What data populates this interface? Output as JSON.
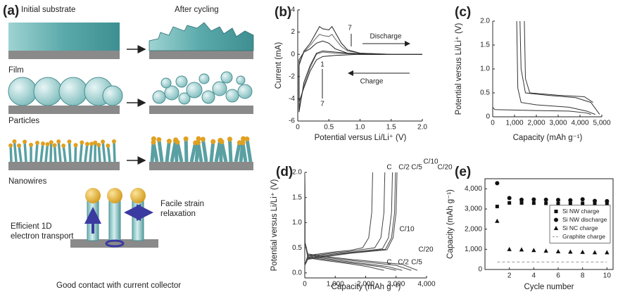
{
  "diagram": {
    "label": "(a)",
    "initial": "Initial substrate",
    "after": "After cycling",
    "film": "Film",
    "particles": "Particles",
    "nanowires": "Nanowires",
    "transport": [
      "Efficient 1D",
      "electron transport"
    ],
    "strain": [
      "Facile strain",
      "relaxation"
    ],
    "contact": "Good contact with current collector"
  },
  "chart_data": [
    {
      "type": "line",
      "label": "(b)",
      "x_label": "Potential versus Li/Li⁺ (V)",
      "y_label": "Current (mA)",
      "xlim": [
        0,
        2
      ],
      "xticks": [
        0,
        0.5,
        {
          "value": 1,
          "label": "1.0"
        },
        1.5,
        {
          "value": 2,
          "label": "2.0"
        }
      ],
      "ylim": [
        -6,
        4
      ],
      "yticks": [
        -6,
        -4,
        -2,
        0,
        2,
        4
      ],
      "annotations": [
        "7",
        "Discharge",
        "Charge",
        "1",
        "7"
      ],
      "series": [
        {
          "color": "#222",
          "x": [
            2.0,
            1.5,
            1.0,
            0.6,
            0.4,
            0.3,
            0.2,
            0.1,
            0.02,
            0.02,
            0.1,
            0.2,
            0.3,
            0.4,
            0.5,
            0.6,
            0.8,
            1.0,
            1.5,
            2.0
          ],
          "values": [
            0,
            0,
            0,
            -0.1,
            -0.2,
            -0.5,
            -1.5,
            -3,
            -4.3,
            -0.5,
            0.2,
            0.5,
            1.0,
            1.2,
            1.0,
            0.5,
            0.1,
            0.05,
            0,
            0
          ]
        },
        {
          "color": "#666",
          "x": [
            2.0,
            1.5,
            1.0,
            0.6,
            0.4,
            0.3,
            0.2,
            0.1,
            0.02,
            0.02,
            0.1,
            0.2,
            0.3,
            0.35,
            0.4,
            0.5,
            0.55,
            0.6,
            0.7,
            0.8,
            1.0,
            1.5,
            2.0
          ],
          "values": [
            0,
            0,
            0,
            0.1,
            0.2,
            0,
            -1.2,
            -2.8,
            -4.8,
            -0.8,
            0.2,
            0.8,
            1.5,
            1.8,
            1.7,
            1.6,
            1.8,
            1.4,
            0.7,
            0.3,
            0.1,
            0,
            0
          ]
        },
        {
          "color": "#222",
          "x": [
            2.0,
            1.5,
            1.0,
            0.6,
            0.4,
            0.3,
            0.2,
            0.1,
            0.02,
            0.02,
            0.1,
            0.2,
            0.3,
            0.35,
            0.4,
            0.5,
            0.55,
            0.6,
            0.7,
            0.8,
            1.0,
            1.5,
            2.0
          ],
          "values": [
            0,
            0,
            0,
            0.2,
            0.3,
            0.1,
            -1.0,
            -2.5,
            -5.2,
            -1.0,
            0.3,
            1.0,
            2.0,
            2.5,
            2.3,
            2.2,
            2.5,
            2.0,
            1.0,
            0.4,
            0.1,
            0,
            0
          ]
        }
      ]
    },
    {
      "type": "line",
      "label": "(c)",
      "x_label": "Capacity (mAh g⁻¹)",
      "y_label": "Potential versus Li/Li⁺ (V)",
      "xlim": [
        0,
        5000
      ],
      "xticks": [
        0,
        {
          "value": 1000,
          "label": "1,000"
        },
        {
          "value": 2000,
          "label": "2,000"
        },
        {
          "value": 3000,
          "label": "3,000"
        },
        {
          "value": 4000,
          "label": "4,000"
        },
        {
          "value": 5000,
          "label": "5,000"
        }
      ],
      "ylim": [
        0,
        2
      ],
      "yticks": [
        0,
        0.5,
        {
          "value": 1,
          "label": "1.0"
        },
        1.5,
        {
          "value": 2,
          "label": "2.0"
        }
      ],
      "series": [
        {
          "color": "#333",
          "x": [
            0,
            0,
            100,
            2000,
            3500,
            4300,
            4500
          ],
          "values": [
            2.0,
            0.2,
            0.15,
            0.13,
            0.12,
            0.08,
            0.05
          ]
        },
        {
          "color": "#333",
          "x": [
            1100,
            1150,
            1300,
            2000,
            3500,
            4300,
            4700
          ],
          "values": [
            2.0,
            0.6,
            0.3,
            0.25,
            0.2,
            0.12,
            0.05
          ]
        },
        {
          "color": "#333",
          "x": [
            1250,
            1300,
            1500,
            2500,
            3800,
            4500,
            4900
          ],
          "values": [
            2.0,
            1.0,
            0.5,
            0.45,
            0.4,
            0.3,
            0.05
          ]
        },
        {
          "color": "#333",
          "x": [
            1450,
            1500,
            1700,
            3000,
            4200,
            4600
          ],
          "values": [
            2.0,
            0.8,
            0.5,
            0.45,
            0.42,
            0.3
          ]
        }
      ]
    },
    {
      "type": "line",
      "label": "(d)",
      "x_label": "Capacity (mAh g⁻¹)",
      "y_label": "Potential versus Li/Li⁺ (V)",
      "xlim": [
        0,
        4000
      ],
      "xticks": [
        0,
        {
          "value": 1000,
          "label": "1,000"
        },
        {
          "value": 2000,
          "label": "2,000"
        },
        {
          "value": 3000,
          "label": "3,000"
        },
        {
          "value": 4000,
          "label": "4,000"
        }
      ],
      "ylim": [
        -0.1,
        2
      ],
      "yticks": [
        {
          "value": 0,
          "label": "0.0"
        },
        0.5,
        {
          "value": 1,
          "label": "1.0"
        },
        1.5,
        {
          "value": 2,
          "label": "2.0"
        }
      ],
      "annotations": [
        "C",
        "C/2",
        "C/5",
        "C/10",
        "C/20",
        "C/10",
        "C/20",
        "C",
        "C/2",
        "C/5"
      ],
      "series": [
        {
          "color": "#444",
          "x": [
            0,
            100,
            500,
            1000,
            1500,
            1900,
            2100,
            2200,
            2230
          ],
          "values": [
            0.15,
            0.35,
            0.38,
            0.42,
            0.45,
            0.5,
            0.7,
            1.2,
            2.0
          ]
        },
        {
          "color": "#444",
          "x": [
            0,
            100,
            500,
            1000,
            1500,
            2300,
            2500,
            2600,
            2630
          ],
          "values": [
            0.15,
            0.33,
            0.36,
            0.4,
            0.43,
            0.5,
            0.7,
            1.2,
            2.0
          ]
        },
        {
          "color": "#444",
          "x": [
            0,
            100,
            500,
            1000,
            1500,
            2550,
            2750,
            2850,
            2880
          ],
          "values": [
            0.15,
            0.3,
            0.34,
            0.38,
            0.41,
            0.48,
            0.7,
            1.2,
            2.0
          ]
        },
        {
          "color": "#444",
          "x": [
            0,
            100,
            500,
            1000,
            1500,
            2650,
            2850,
            2950,
            2980
          ],
          "values": [
            0.15,
            0.28,
            0.32,
            0.36,
            0.4,
            0.47,
            0.7,
            1.2,
            2.0
          ]
        },
        {
          "color": "#444",
          "x": [
            0,
            100,
            500,
            1000,
            1500,
            2700,
            2900,
            3000,
            3030
          ],
          "values": [
            0.15,
            0.27,
            0.31,
            0.35,
            0.39,
            0.46,
            0.7,
            1.2,
            2.0
          ]
        },
        {
          "color": "#444",
          "x": [
            0,
            10,
            100,
            500,
            1500,
            2100,
            2600
          ],
          "values": [
            2.0,
            0.6,
            0.3,
            0.26,
            0.18,
            0.12,
            0.05
          ]
        },
        {
          "color": "#444",
          "x": [
            0,
            10,
            100,
            500,
            1500,
            2500,
            3000
          ],
          "values": [
            2.0,
            0.6,
            0.32,
            0.28,
            0.2,
            0.12,
            0.05
          ]
        },
        {
          "color": "#444",
          "x": [
            0,
            10,
            100,
            500,
            1500,
            2700,
            3200
          ],
          "values": [
            2.0,
            0.6,
            0.34,
            0.3,
            0.22,
            0.13,
            0.05
          ]
        },
        {
          "color": "#444",
          "x": [
            0,
            10,
            100,
            500,
            1500,
            3000,
            3500
          ],
          "values": [
            2.0,
            0.6,
            0.36,
            0.32,
            0.25,
            0.15,
            0.05
          ]
        },
        {
          "color": "#444",
          "x": [
            0,
            10,
            100,
            500,
            1500,
            3200,
            3700
          ],
          "values": [
            2.0,
            0.6,
            0.38,
            0.34,
            0.27,
            0.17,
            0.05
          ]
        }
      ]
    },
    {
      "type": "scatter",
      "label": "(e)",
      "x_label": "Cycle number",
      "y_label": "Capacity (mAh g⁻¹)",
      "xlim": [
        0,
        10.5
      ],
      "xticks": [
        2,
        4,
        6,
        8,
        10
      ],
      "ylim": [
        0,
        4500
      ],
      "yticks": [
        0,
        {
          "value": 1000,
          "label": "1,000"
        },
        {
          "value": 2000,
          "label": "2,000"
        },
        {
          "value": 3000,
          "label": "3,000"
        },
        {
          "value": 4000,
          "label": "4,000"
        }
      ],
      "legend": "center-right",
      "series": [
        {
          "name": "Si NW charge",
          "marker": "square",
          "color": "#111",
          "x": [
            1,
            2,
            3,
            4,
            5,
            6,
            7,
            8,
            9,
            10
          ],
          "values": [
            3124,
            3300,
            3300,
            3290,
            3280,
            3270,
            3260,
            3280,
            3250,
            3240
          ]
        },
        {
          "name": "Si NW discharge",
          "marker": "circle",
          "color": "#111",
          "x": [
            1,
            2,
            3,
            4,
            5,
            6,
            7,
            8,
            9,
            10
          ],
          "values": [
            4277,
            3540,
            3460,
            3470,
            3460,
            3450,
            3430,
            3480,
            3400,
            3390
          ]
        },
        {
          "name": "Si NC charge",
          "marker": "triangle",
          "color": "#111",
          "x": [
            1,
            2,
            3,
            4,
            5,
            6,
            7,
            8,
            9,
            10
          ],
          "values": [
            2400,
            1000,
            980,
            950,
            920,
            890,
            870,
            860,
            840,
            840
          ]
        },
        {
          "name": "Graphite charge",
          "marker": "dashed-line",
          "color": "#999",
          "x": [
            1,
            2,
            3,
            4,
            5,
            6,
            7,
            8,
            9,
            10
          ],
          "values": [
            372,
            372,
            372,
            372,
            372,
            372,
            372,
            372,
            372,
            372
          ]
        }
      ]
    }
  ]
}
